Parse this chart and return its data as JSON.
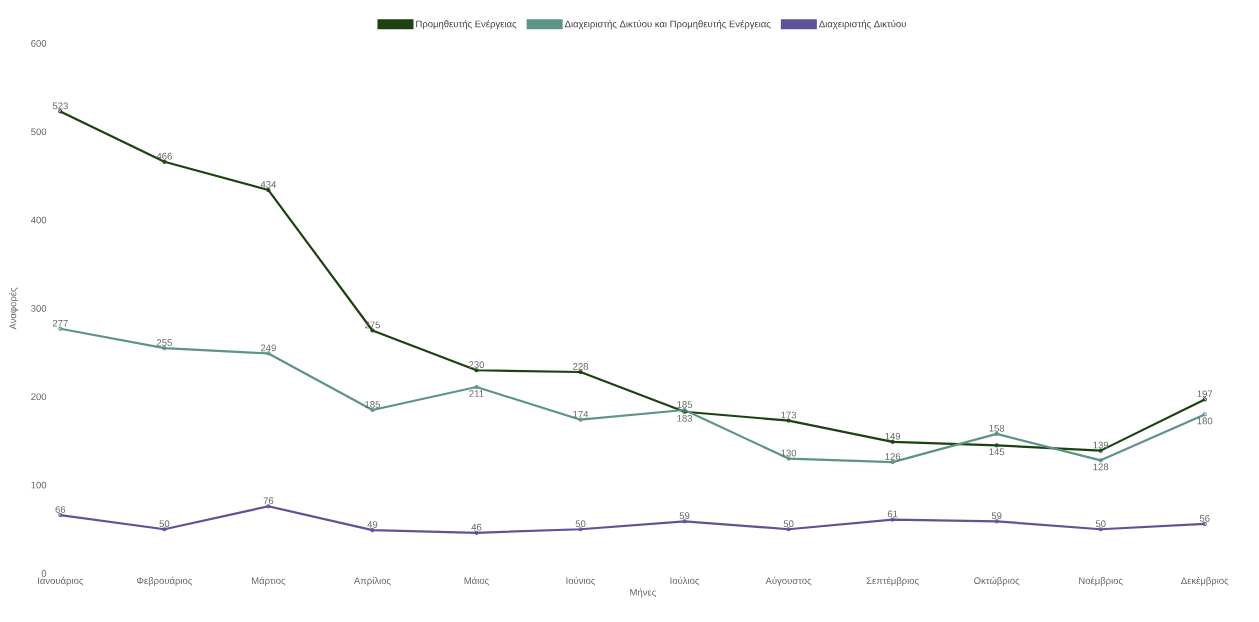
{
  "chart_data": {
    "type": "line",
    "xlabel": "Μήνες",
    "ylabel": "Αναφορές",
    "categories": [
      "Ιανουάριος",
      "Φεβρουάριος",
      "Μάρτιος",
      "Απρίλιος",
      "Μάιος",
      "Ιούνιος",
      "Ιούλιος",
      "Αύγουστος",
      "Σεπτέμβριος",
      "Οκτώβριος",
      "Νοέμβριος",
      "Δεκέμβριος"
    ],
    "series": [
      {
        "name": "Προμηθευτής Ενέργειας",
        "color": "#1b420f",
        "values": [
          523,
          466,
          434,
          275,
          230,
          228,
          183,
          173,
          149,
          145,
          139,
          197
        ]
      },
      {
        "name": "Διαχειριστής Δικτύου και Προμηθευτής Ενέργειας",
        "color": "#5e9488",
        "values": [
          277,
          255,
          249,
          185,
          211,
          174,
          185,
          130,
          126,
          158,
          128,
          180
        ]
      },
      {
        "name": "Διαχειριστής Δικτύου",
        "color": "#5f5297",
        "values": [
          66,
          50,
          76,
          49,
          46,
          50,
          59,
          50,
          61,
          59,
          50,
          56
        ]
      }
    ],
    "ylim": [
      0,
      600
    ],
    "yticks": [
      0,
      100,
      200,
      300,
      400,
      500,
      600
    ],
    "grid": false,
    "legend": "top",
    "marker": "circle",
    "line_style": "solid",
    "data_labels": true
  }
}
